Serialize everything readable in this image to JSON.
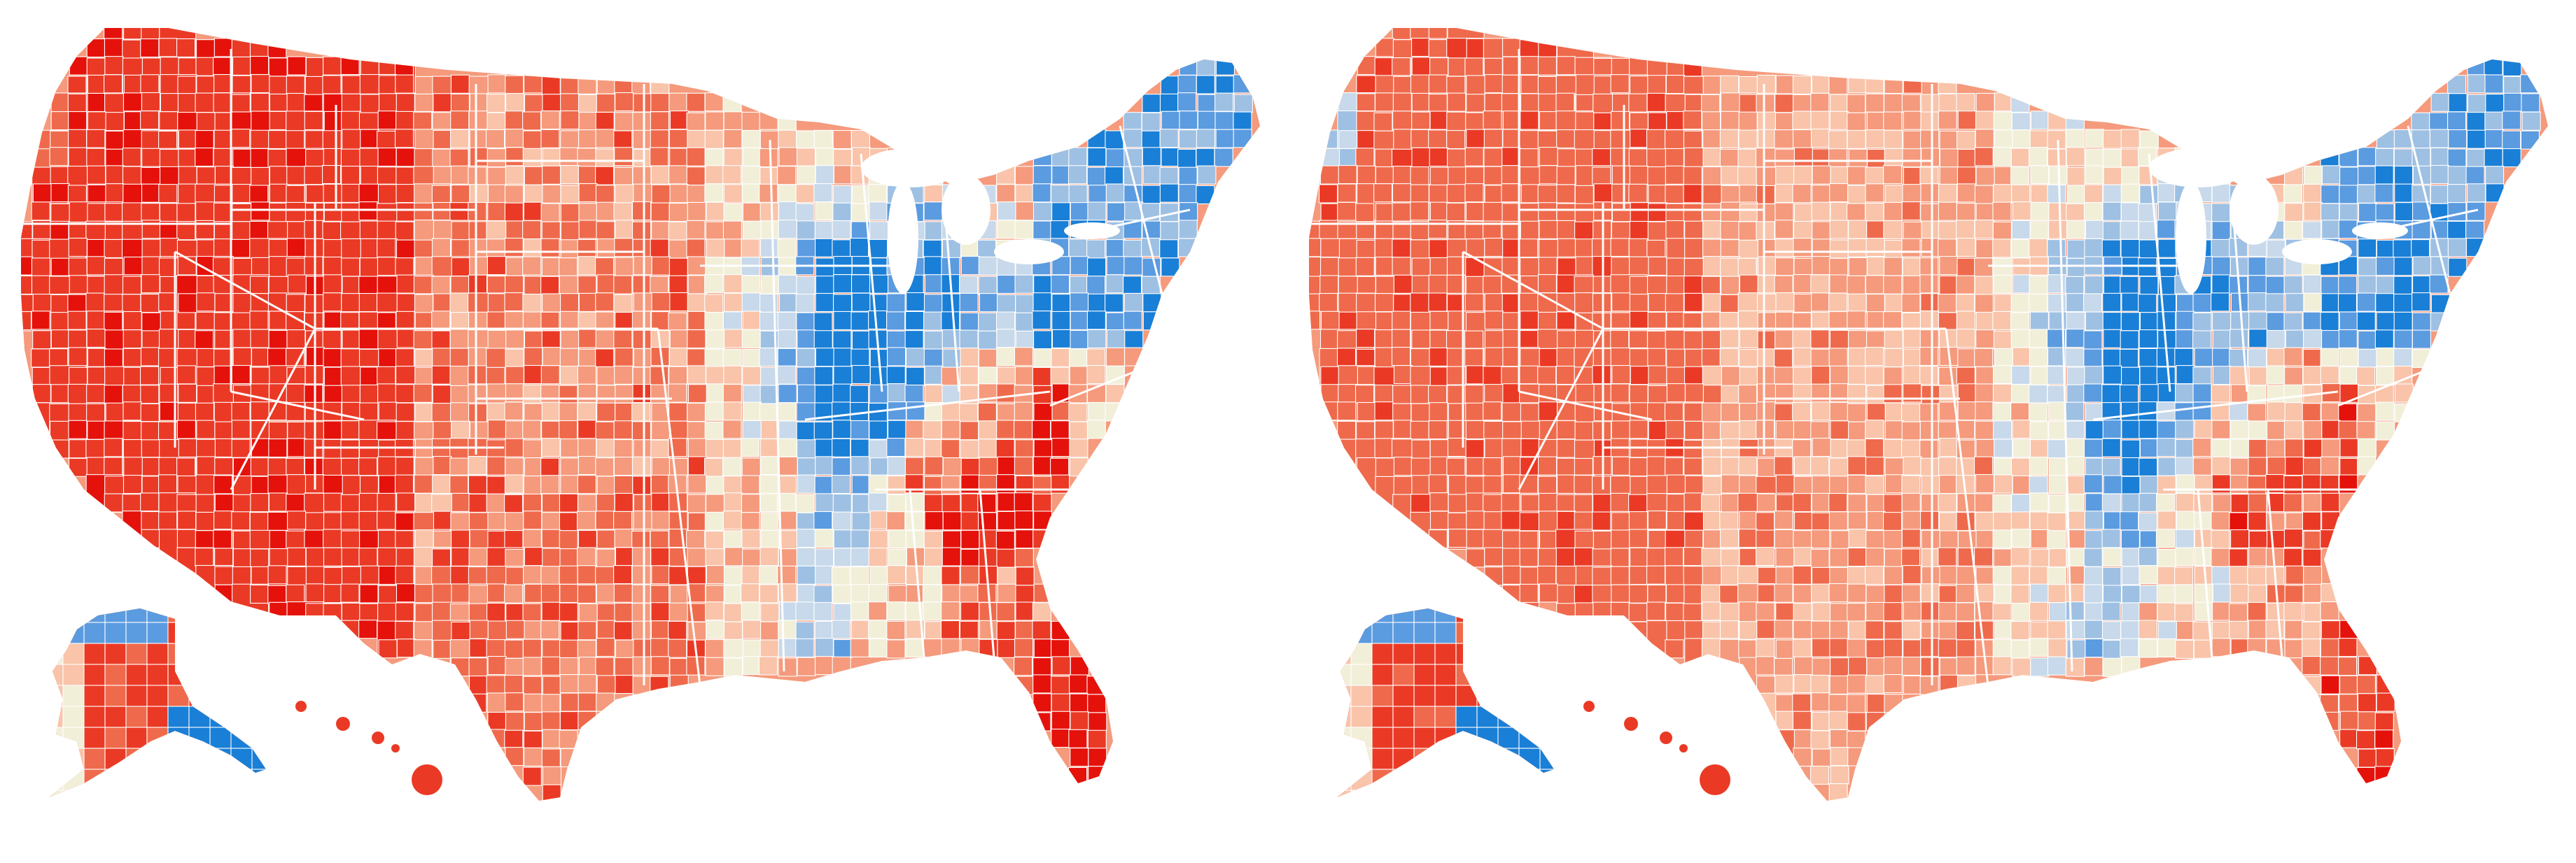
{
  "maps": [
    {
      "id": "left",
      "pattern": "strong-red",
      "regions": {
        "alaska_blue": true
      }
    },
    {
      "id": "right",
      "pattern": "moderate-red",
      "regions": {
        "alaska_blue": true
      }
    }
  ],
  "colors": {
    "red_dark": "#e5120b",
    "red": "#ea3a26",
    "red_mid": "#ef6a4c",
    "red_light": "#f59a7c",
    "red_pale": "#f9c4aa",
    "neutral": "#f2efd9",
    "blue_pale": "#c7d9ea",
    "blue_light": "#9ec0e3",
    "blue": "#5b9be0",
    "blue_dark": "#1a7fd6",
    "background": "#ffffff"
  }
}
